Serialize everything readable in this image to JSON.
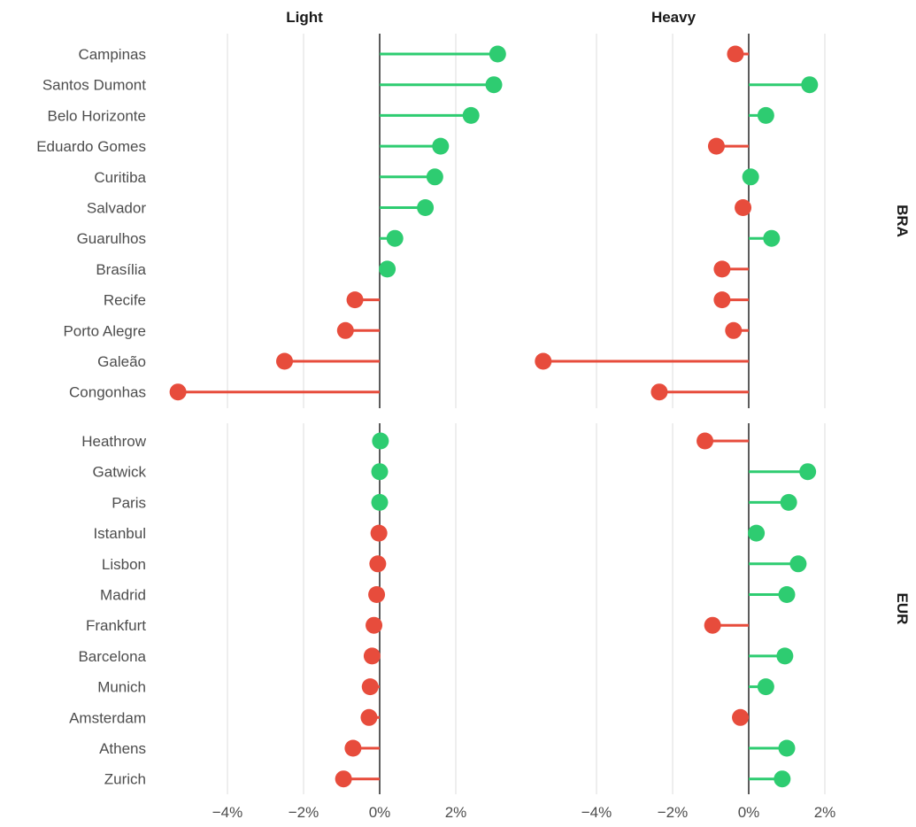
{
  "chart_data": {
    "type": "lollipop",
    "columns": [
      "Light",
      "Heavy"
    ],
    "x_ticks": [
      -4,
      -2,
      0,
      2
    ],
    "x_tick_labels": [
      "−4%",
      "−2%",
      "0%",
      "2%"
    ],
    "xlim": [
      -5.5,
      3.0
    ],
    "colors": {
      "positive": "#2ecc71",
      "negative": "#e74c3c",
      "grid": "#e6e6e6",
      "zero_line": "#333333"
    },
    "groups": [
      {
        "name": "BRA",
        "airports": [
          {
            "label": "Campinas",
            "light": 3.1,
            "heavy": -0.35
          },
          {
            "label": "Santos Dumont",
            "light": 3.0,
            "heavy": 1.6
          },
          {
            "label": "Belo Horizonte",
            "light": 2.4,
            "heavy": 0.45
          },
          {
            "label": "Eduardo Gomes",
            "light": 1.6,
            "heavy": -0.85
          },
          {
            "label": "Curitiba",
            "light": 1.45,
            "heavy": 0.05
          },
          {
            "label": "Salvador",
            "light": 1.2,
            "heavy": -0.15
          },
          {
            "label": "Guarulhos",
            "light": 0.4,
            "heavy": 0.6
          },
          {
            "label": "Brasília",
            "light": 0.2,
            "heavy": -0.7
          },
          {
            "label": "Recife",
            "light": -0.65,
            "heavy": -0.7
          },
          {
            "label": "Porto Alegre",
            "light": -0.9,
            "heavy": -0.4
          },
          {
            "label": "Galeão",
            "light": -2.5,
            "heavy": -5.4
          },
          {
            "label": "Congonhas",
            "light": -5.3,
            "heavy": -2.35
          }
        ]
      },
      {
        "name": "EUR",
        "airports": [
          {
            "label": "Heathrow",
            "light": 0.02,
            "heavy": -1.15
          },
          {
            "label": "Gatwick",
            "light": 0.0,
            "heavy": 1.55
          },
          {
            "label": "Paris",
            "light": 0.0,
            "heavy": 1.05
          },
          {
            "label": "Istanbul",
            "light": -0.02,
            "heavy": 0.2
          },
          {
            "label": "Lisbon",
            "light": -0.05,
            "heavy": 1.3
          },
          {
            "label": "Madrid",
            "light": -0.08,
            "heavy": 1.0
          },
          {
            "label": "Frankfurt",
            "light": -0.15,
            "heavy": -0.95
          },
          {
            "label": "Barcelona",
            "light": -0.2,
            "heavy": 0.95
          },
          {
            "label": "Munich",
            "light": -0.25,
            "heavy": 0.45
          },
          {
            "label": "Amsterdam",
            "light": -0.28,
            "heavy": -0.22
          },
          {
            "label": "Athens",
            "light": -0.7,
            "heavy": 1.0
          },
          {
            "label": "Zurich",
            "light": -0.95,
            "heavy": 0.88
          }
        ]
      }
    ]
  }
}
